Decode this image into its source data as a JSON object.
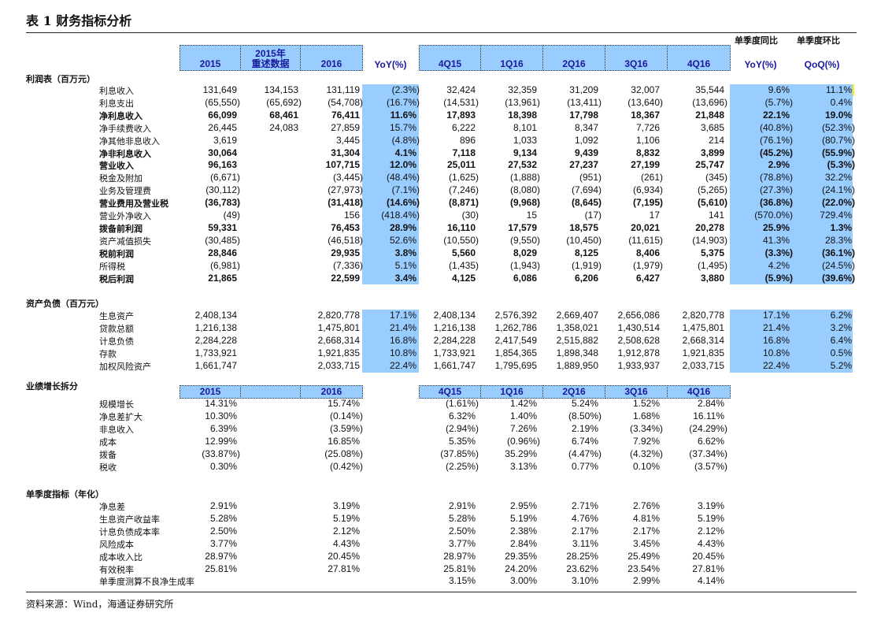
{
  "title": "表 1 财务指标分析",
  "header": {
    "annual": [
      "2015",
      "2015年\n重述数据",
      "2016"
    ],
    "yoy": "YoY(%)",
    "quarters": [
      "4Q15",
      "1Q16",
      "2Q16",
      "3Q16",
      "4Q16"
    ],
    "q_yoy_caption": "单季度同比",
    "q_qoq_caption": "单季度环比",
    "q_yoy": "YoY(%)",
    "q_qoq": "QoQ(%)"
  },
  "colors": {
    "header_fill": "#99ccff",
    "header_text": "#1a1a9c",
    "shade": "#99ccff"
  },
  "sections": [
    {
      "title": "利润表（百万元）",
      "rows": [
        {
          "label": "利息收入",
          "bold": false,
          "values": [
            "131,649",
            "134,153",
            "131,119",
            "(2.3%)",
            "32,424",
            "32,359",
            "31,209",
            "32,007",
            "35,544",
            "9.6%",
            "11.1%"
          ]
        },
        {
          "label": "利息支出",
          "bold": false,
          "values": [
            "(65,550)",
            "(65,692)",
            "(54,708)",
            "(16.7%)",
            "(14,531)",
            "(13,961)",
            "(13,411)",
            "(13,640)",
            "(13,696)",
            "(5.7%)",
            "0.4%"
          ]
        },
        {
          "label": "净利息收入",
          "bold": true,
          "values": [
            "66,099",
            "68,461",
            "76,411",
            "11.6%",
            "17,893",
            "18,398",
            "17,798",
            "18,367",
            "21,848",
            "22.1%",
            "19.0%"
          ]
        },
        {
          "label": "净手续费收入",
          "bold": false,
          "values": [
            "26,445",
            "24,083",
            "27,859",
            "15.7%",
            "6,222",
            "8,101",
            "8,347",
            "7,726",
            "3,685",
            "(40.8%)",
            "(52.3%)"
          ]
        },
        {
          "label": "净其他非息收入",
          "bold": false,
          "values": [
            "3,619",
            "",
            "3,445",
            "(4.8%)",
            "896",
            "1,033",
            "1,092",
            "1,106",
            "214",
            "(76.1%)",
            "(80.7%)"
          ]
        },
        {
          "label": "净非利息收入",
          "bold": true,
          "values": [
            "30,064",
            "",
            "31,304",
            "4.1%",
            "7,118",
            "9,134",
            "9,439",
            "8,832",
            "3,899",
            "(45.2%)",
            "(55.9%)"
          ]
        },
        {
          "label": "营业收入",
          "bold": true,
          "values": [
            "96,163",
            "",
            "107,715",
            "12.0%",
            "25,011",
            "27,532",
            "27,237",
            "27,199",
            "25,747",
            "2.9%",
            "(5.3%)"
          ]
        },
        {
          "label": "税金及附加",
          "bold": false,
          "values": [
            "(6,671)",
            "",
            "(3,445)",
            "(48.4%)",
            "(1,625)",
            "(1,888)",
            "(951)",
            "(261)",
            "(345)",
            "(78.8%)",
            "32.2%"
          ]
        },
        {
          "label": "业务及管理费",
          "bold": false,
          "values": [
            "(30,112)",
            "",
            "(27,973)",
            "(7.1%)",
            "(7,246)",
            "(8,080)",
            "(7,694)",
            "(6,934)",
            "(5,265)",
            "(27.3%)",
            "(24.1%)"
          ]
        },
        {
          "label": "营业费用及营业税",
          "bold": true,
          "values": [
            "(36,783)",
            "",
            "(31,418)",
            "(14.6%)",
            "(8,871)",
            "(9,968)",
            "(8,645)",
            "(7,195)",
            "(5,610)",
            "(36.8%)",
            "(22.0%)"
          ]
        },
        {
          "label": "营业外净收入",
          "bold": false,
          "values": [
            "(49)",
            "",
            "156",
            "(418.4%)",
            "(30)",
            "15",
            "(17)",
            "17",
            "141",
            "(570.0%)",
            "729.4%"
          ]
        },
        {
          "label": "拨备前利润",
          "bold": true,
          "values": [
            "59,331",
            "",
            "76,453",
            "28.9%",
            "16,110",
            "17,579",
            "18,575",
            "20,021",
            "20,278",
            "25.9%",
            "1.3%"
          ]
        },
        {
          "label": "资产减值损失",
          "bold": false,
          "values": [
            "(30,485)",
            "",
            "(46,518)",
            "52.6%",
            "(10,550)",
            "(9,550)",
            "(10,450)",
            "(11,615)",
            "(14,903)",
            "41.3%",
            "28.3%"
          ]
        },
        {
          "label": "税前利润",
          "bold": true,
          "values": [
            "28,846",
            "",
            "29,935",
            "3.8%",
            "5,560",
            "8,029",
            "8,125",
            "8,406",
            "5,375",
            "(3.3%)",
            "(36.1%)"
          ]
        },
        {
          "label": "所得税",
          "bold": false,
          "values": [
            "(6,981)",
            "",
            "(7,336)",
            "5.1%",
            "(1,435)",
            "(1,943)",
            "(1,919)",
            "(1,979)",
            "(1,495)",
            "4.2%",
            "(24.5%)"
          ]
        },
        {
          "label": "税后利润",
          "bold": true,
          "values": [
            "21,865",
            "",
            "22,599",
            "3.4%",
            "4,125",
            "6,086",
            "6,206",
            "6,427",
            "3,880",
            "(5.9%)",
            "(39.6%)"
          ]
        }
      ]
    },
    {
      "title": "资产负债（百万元）",
      "rows": [
        {
          "label": "生息资产",
          "bold": false,
          "values": [
            "2,408,134",
            "",
            "2,820,778",
            "17.1%",
            "2,408,134",
            "2,576,392",
            "2,669,407",
            "2,656,086",
            "2,820,778",
            "17.1%",
            "6.2%"
          ]
        },
        {
          "label": "贷款总额",
          "bold": false,
          "values": [
            "1,216,138",
            "",
            "1,475,801",
            "21.4%",
            "1,216,138",
            "1,262,786",
            "1,358,021",
            "1,430,514",
            "1,475,801",
            "21.4%",
            "3.2%"
          ]
        },
        {
          "label": "计息负债",
          "bold": false,
          "values": [
            "2,284,228",
            "",
            "2,668,314",
            "16.8%",
            "2,284,228",
            "2,417,549",
            "2,515,882",
            "2,508,628",
            "2,668,314",
            "16.8%",
            "6.4%"
          ]
        },
        {
          "label": "存款",
          "bold": false,
          "values": [
            "1,733,921",
            "",
            "1,921,835",
            "10.8%",
            "1,733,921",
            "1,854,365",
            "1,898,348",
            "1,912,878",
            "1,921,835",
            "10.8%",
            "0.5%"
          ]
        },
        {
          "label": "加权风险资产",
          "bold": false,
          "values": [
            "1,661,747",
            "",
            "2,033,715",
            "22.4%",
            "1,661,747",
            "1,795,695",
            "1,889,950",
            "1,933,937",
            "2,033,715",
            "22.4%",
            "5.2%"
          ]
        }
      ]
    },
    {
      "title": "业绩增长拆分",
      "header": [
        "2015",
        "",
        "2016",
        "4Q15",
        "1Q16",
        "2Q16",
        "3Q16",
        "4Q16"
      ],
      "rows": [
        {
          "label": "规模增长",
          "bold": false,
          "values": [
            "14.31%",
            "",
            "15.74%",
            "",
            "(1.61%)",
            "1.42%",
            "5.24%",
            "1.52%",
            "2.84%",
            "",
            ""
          ]
        },
        {
          "label": "净息差扩大",
          "bold": false,
          "values": [
            "10.30%",
            "",
            "(0.14%)",
            "",
            "6.32%",
            "1.40%",
            "(8.50%)",
            "1.68%",
            "16.11%",
            "",
            ""
          ]
        },
        {
          "label": "非息收入",
          "bold": false,
          "values": [
            "6.39%",
            "",
            "(3.59%)",
            "",
            "(2.94%)",
            "7.26%",
            "2.19%",
            "(3.34%)",
            "(24.29%)",
            "",
            ""
          ]
        },
        {
          "label": "成本",
          "bold": false,
          "values": [
            "12.99%",
            "",
            "16.85%",
            "",
            "5.35%",
            "(0.96%)",
            "6.74%",
            "7.92%",
            "6.62%",
            "",
            ""
          ]
        },
        {
          "label": "拨备",
          "bold": false,
          "values": [
            "(33.87%)",
            "",
            "(25.08%)",
            "",
            "(37.85%)",
            "35.29%",
            "(4.47%)",
            "(4.32%)",
            "(37.34%)",
            "",
            ""
          ]
        },
        {
          "label": "税收",
          "bold": false,
          "values": [
            "0.30%",
            "",
            "(0.42%)",
            "",
            "(2.25%)",
            "3.13%",
            "0.77%",
            "0.10%",
            "(3.57%)",
            "",
            ""
          ]
        }
      ]
    },
    {
      "title": "单季度指标（年化）",
      "rows": [
        {
          "label": "净息差",
          "bold": false,
          "values": [
            "2.91%",
            "",
            "3.19%",
            "",
            "2.91%",
            "2.95%",
            "2.71%",
            "2.76%",
            "3.19%",
            "",
            ""
          ]
        },
        {
          "label": "生息资产收益率",
          "bold": false,
          "values": [
            "5.28%",
            "",
            "5.19%",
            "",
            "5.28%",
            "5.19%",
            "4.76%",
            "4.81%",
            "5.19%",
            "",
            ""
          ]
        },
        {
          "label": "计息负债成本率",
          "bold": false,
          "values": [
            "2.50%",
            "",
            "2.12%",
            "",
            "2.50%",
            "2.38%",
            "2.17%",
            "2.17%",
            "2.12%",
            "",
            ""
          ]
        },
        {
          "label": "风险成本",
          "bold": false,
          "values": [
            "3.77%",
            "",
            "4.43%",
            "",
            "3.77%",
            "2.84%",
            "3.11%",
            "3.45%",
            "4.43%",
            "",
            ""
          ]
        },
        {
          "label": "成本收入比",
          "bold": false,
          "values": [
            "28.97%",
            "",
            "20.45%",
            "",
            "28.97%",
            "29.35%",
            "28.25%",
            "25.49%",
            "20.45%",
            "",
            ""
          ]
        },
        {
          "label": "有效税率",
          "bold": false,
          "values": [
            "25.81%",
            "",
            "27.81%",
            "",
            "25.81%",
            "24.20%",
            "23.62%",
            "23.54%",
            "27.81%",
            "",
            ""
          ]
        },
        {
          "label": "单季度测算不良净生成率",
          "bold": false,
          "values": [
            "",
            "",
            "",
            "",
            "3.15%",
            "3.00%",
            "3.10%",
            "2.99%",
            "4.14%",
            "",
            ""
          ]
        }
      ]
    }
  ],
  "source": "资料来源：Wind，海通证券研究所"
}
